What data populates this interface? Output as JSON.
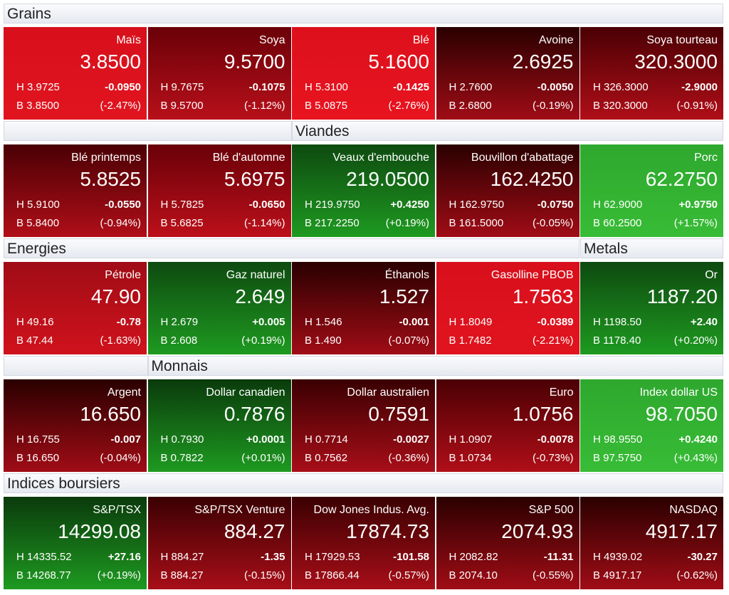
{
  "rows": [
    {
      "headers": [
        {
          "label": "Grains"
        }
      ],
      "tiles": [
        {
          "name": "Maïs",
          "price": "3.8500",
          "high": "H 3.9725",
          "change": "-0.0950",
          "low": "B 3.8500",
          "pct": "(-2.47%)",
          "top": "#d8101c",
          "color": "#e0141f"
        },
        {
          "name": "Soya",
          "price": "9.5700",
          "high": "H 9.7675",
          "change": "-0.1075",
          "low": "B 9.5700",
          "pct": "(-1.12%)",
          "top": "#6a0008",
          "color": "#b8101a"
        },
        {
          "name": "Blé",
          "price": "5.1600",
          "high": "H 5.3100",
          "change": "-0.1425",
          "low": "B 5.0875",
          "pct": "(-2.76%)",
          "top": "#dc101c",
          "color": "#e8141f"
        },
        {
          "name": "Avoine",
          "price": "2.6925",
          "high": "H 2.7600",
          "change": "-0.0050",
          "low": "B 2.6800",
          "pct": "(-0.19%)",
          "top": "#2a0000",
          "color": "#a00c16"
        },
        {
          "name": "Soya tourteau",
          "price": "320.3000",
          "high": "H 326.3000",
          "change": "-2.9000",
          "low": "B 320.3000",
          "pct": "(-0.91%)",
          "top": "#4a0004",
          "color": "#b00e18"
        }
      ]
    },
    {
      "headers": [
        {
          "label": "Viandes"
        }
      ],
      "tiles": [
        {
          "name": "Blé printemps",
          "price": "5.8525",
          "high": "H 5.9100",
          "change": "-0.0550",
          "low": "B 5.8400",
          "pct": "(-0.94%)",
          "top": "#4a0004",
          "color": "#b00e18"
        },
        {
          "name": "Blé d'automne",
          "price": "5.6975",
          "high": "H 5.7825",
          "change": "-0.0650",
          "low": "B 5.6825",
          "pct": "(-1.14%)",
          "top": "#6a0008",
          "color": "#bc101a"
        },
        {
          "name": "Veaux d'embouche",
          "price": "219.0500",
          "high": "H 219.9750",
          "change": "+0.4250",
          "low": "B 217.2250",
          "pct": "(+0.19%)",
          "top": "#0e4a10",
          "color": "#1e9a20"
        },
        {
          "name": "Bouvillon d'abattage",
          "price": "162.4250",
          "high": "H 162.9750",
          "change": "-0.0750",
          "low": "B 161.5000",
          "pct": "(-0.05%)",
          "top": "#2a0000",
          "color": "#a00c16"
        },
        {
          "name": "Porc",
          "price": "62.2750",
          "high": "H 62.9000",
          "change": "+0.9750",
          "low": "B 60.2500",
          "pct": "(+1.57%)",
          "top": "#2ea82e",
          "color": "#38bc36"
        }
      ]
    },
    {
      "headers": [
        {
          "label": "Energies"
        },
        {
          "label": "Metals"
        }
      ],
      "tiles": [
        {
          "name": "Pétrole",
          "price": "47.90",
          "high": "H 49.16",
          "change": "-0.78",
          "low": "B 47.44",
          "pct": "(-1.63%)",
          "top": "#a00c16",
          "color": "#d0121c"
        },
        {
          "name": "Gaz naturel",
          "price": "2.649",
          "high": "H 2.679",
          "change": "+0.005",
          "low": "B 2.608",
          "pct": "(+0.19%)",
          "top": "#0e4a10",
          "color": "#1e9a20"
        },
        {
          "name": "Éthanols",
          "price": "1.527",
          "high": "H 1.546",
          "change": "-0.001",
          "low": "B 1.490",
          "pct": "(-0.07%)",
          "top": "#2a0000",
          "color": "#a00c16"
        },
        {
          "name": "Gasolline PBOB",
          "price": "1.7563",
          "high": "H 1.8049",
          "change": "-0.0389",
          "low": "B 1.7482",
          "pct": "(-2.21%)",
          "top": "#d8101c",
          "color": "#e0141f"
        },
        {
          "name": "Or",
          "price": "1187.20",
          "high": "H 1198.50",
          "change": "+2.40",
          "low": "B 1178.40",
          "pct": "(+0.20%)",
          "top": "#0e4a10",
          "color": "#1e9a20"
        }
      ]
    },
    {
      "headers": [
        {
          "label": "Monnais"
        }
      ],
      "tiles": [
        {
          "name": "Argent",
          "price": "16.650",
          "high": "H 16.755",
          "change": "-0.007",
          "low": "B 16.650",
          "pct": "(-0.04%)",
          "top": "#2a0000",
          "color": "#a00c16"
        },
        {
          "name": "Dollar canadien",
          "price": "0.7876",
          "high": "H 0.7930",
          "change": "+0.0001",
          "low": "B 0.7822",
          "pct": "(+0.01%)",
          "top": "#0a3a0c",
          "color": "#1e9a20"
        },
        {
          "name": "Dollar australien",
          "price": "0.7591",
          "high": "H 0.7714",
          "change": "-0.0027",
          "low": "B 0.7562",
          "pct": "(-0.36%)",
          "top": "#3a0002",
          "color": "#a80e18"
        },
        {
          "name": "Euro",
          "price": "1.0756",
          "high": "H 1.0907",
          "change": "-0.0078",
          "low": "B 1.0734",
          "pct": "(-0.73%)",
          "top": "#4a0004",
          "color": "#b00e18"
        },
        {
          "name": "Index dollar US",
          "price": "98.7050",
          "high": "H 98.9550",
          "change": "+0.4240",
          "low": "B 97.5750",
          "pct": "(+0.43%)",
          "top": "#2ea82e",
          "color": "#38bc36"
        }
      ]
    },
    {
      "headers": [
        {
          "label": "Indices boursiers"
        }
      ],
      "tiles": [
        {
          "name": "S&P/TSX",
          "price": "14299.08",
          "high": "H 14335.52",
          "change": "+27.16",
          "low": "B 14268.77",
          "pct": "(+0.19%)",
          "top": "#0a3a0c",
          "color": "#1e9a20"
        },
        {
          "name": "S&P/TSX Venture",
          "price": "884.27",
          "high": "H 884.27",
          "change": "-1.35",
          "low": "B 884.27",
          "pct": "(-0.15%)",
          "top": "#3a0002",
          "color": "#a80e18"
        },
        {
          "name": "Dow Jones Indus. Avg.",
          "price": "17874.73",
          "high": "H 17929.53",
          "change": "-101.58",
          "low": "B 17866.44",
          "pct": "(-0.57%)",
          "top": "#3a0002",
          "color": "#a80e18"
        },
        {
          "name": "S&P 500",
          "price": "2074.93",
          "high": "H 2082.82",
          "change": "-11.31",
          "low": "B 2074.10",
          "pct": "(-0.55%)",
          "top": "#2a0000",
          "color": "#a00c16"
        },
        {
          "name": "NASDAQ",
          "price": "4917.17",
          "high": "H 4939.02",
          "change": "-30.27",
          "low": "B 4917.17",
          "pct": "(-0.62%)",
          "top": "#2a0000",
          "color": "#a00c16"
        }
      ]
    }
  ]
}
